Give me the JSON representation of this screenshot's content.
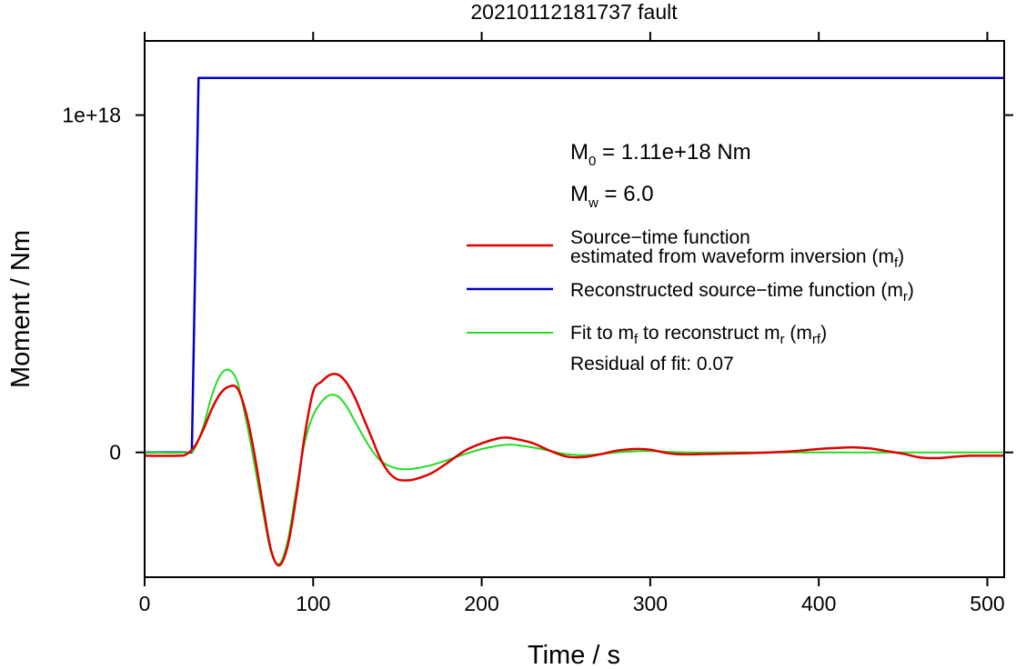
{
  "chart_data": {
    "type": "line",
    "title": "20210112181737 fault",
    "xlabel": "Time / s",
    "ylabel": "Moment / Nm",
    "xlim": [
      0,
      510
    ],
    "ylim": [
      -3.7e+17,
      1.22e+18
    ],
    "x_ticks": [
      0,
      100,
      200,
      300,
      400,
      500
    ],
    "x_tick_labels": [
      "0",
      "100",
      "200",
      "300",
      "400",
      "500"
    ],
    "y_ticks": [
      0,
      1e+18
    ],
    "y_tick_labels": [
      "0",
      "1e+18"
    ],
    "grid": false,
    "legend_position": "right",
    "colors": {
      "red": "#e00000",
      "blue": "#0000c8",
      "green": "#22dd22"
    },
    "annotations": {
      "m0_prefix": "M",
      "m0_sub": "0",
      "m0_suffix": " = 1.11e+18 Nm",
      "mw_prefix": "M",
      "mw_sub": "w",
      "mw_suffix": " = 6.0",
      "residual": "Residual of fit: 0.07"
    },
    "legend": [
      {
        "lines": [
          "Source−time function",
          "estimated from waveform inversion (m",
          "f",
          ")"
        ],
        "color": "red"
      },
      {
        "lines": [
          "Reconstructed source−time function (m",
          "r",
          ")"
        ],
        "color": "blue"
      },
      {
        "lines": [
          "Fit to m",
          "f",
          " to reconstruct m",
          "r",
          " (m",
          "rf",
          ")"
        ],
        "color": "green"
      }
    ],
    "series": [
      {
        "color": "red",
        "x": [
          0,
          20,
          25,
          30,
          35,
          40,
          45,
          50,
          55,
          60,
          65,
          70,
          75,
          80,
          85,
          90,
          95,
          100,
          105,
          110,
          115,
          120,
          125,
          130,
          135,
          140,
          145,
          150,
          155,
          160,
          170,
          180,
          190,
          200,
          210,
          215,
          220,
          230,
          240,
          250,
          260,
          270,
          280,
          290,
          300,
          310,
          320,
          340,
          360,
          380,
          400,
          410,
          420,
          430,
          440,
          450,
          460,
          470,
          480,
          490,
          510
        ],
        "y": [
          -1e+16,
          -1e+16,
          -5000000000000000.0,
          2e+16,
          7e+16,
          1.3e+17,
          1.75e+17,
          1.95e+17,
          1.9e+17,
          1.2e+17,
          0,
          -1.5e+17,
          -2.9e+17,
          -3.35e+17,
          -2.75e+17,
          -1.3e+17,
          5e+16,
          1.8e+17,
          2.1e+17,
          2.3e+17,
          2.3e+17,
          2.05e+17,
          1.6e+17,
          1e+17,
          4e+16,
          -2e+16,
          -6e+16,
          -8e+16,
          -8.3e+16,
          -8e+16,
          -6.2e+16,
          -3e+16,
          5000000000000000.0,
          2.7e+16,
          4.2e+16,
          4.4e+16,
          4e+16,
          2.8e+16,
          6000000000000000.0,
          -1.2e+16,
          -1.4e+16,
          -6000000000000000.0,
          5000000000000000.0,
          1e+16,
          8000000000000000.0,
          -2000000000000000.0,
          -6000000000000000.0,
          -4000000000000000.0,
          -2000000000000000.0,
          2000000000000000.0,
          1e+16,
          1.3e+16,
          1.5e+16,
          1.2e+16,
          4000000000000000.0,
          -4000000000000000.0,
          -1.5e+16,
          -1.7e+16,
          -1.3e+16,
          -1e+16,
          -1e+16
        ]
      },
      {
        "color": "blue",
        "x": [
          0,
          28,
          32,
          510
        ],
        "y": [
          0,
          0,
          1.11e+18,
          1.11e+18
        ]
      },
      {
        "color": "green",
        "x": [
          0,
          25,
          30,
          35,
          40,
          45,
          50,
          55,
          60,
          65,
          70,
          75,
          80,
          85,
          90,
          95,
          100,
          105,
          110,
          115,
          120,
          125,
          130,
          135,
          140,
          145,
          150,
          155,
          160,
          170,
          180,
          190,
          200,
          210,
          215,
          220,
          230,
          240,
          250,
          260,
          270,
          280,
          290,
          300,
          320,
          350,
          400,
          450,
          510
        ],
        "y": [
          0,
          0,
          1.5e+16,
          8e+16,
          1.7e+17,
          2.3e+17,
          2.45e+17,
          2.1e+17,
          1e+17,
          -3e+16,
          -1.7e+17,
          -2.95e+17,
          -3.3e+17,
          -2.6e+17,
          -1.1e+17,
          3e+16,
          1.1e+17,
          1.5e+17,
          1.7e+17,
          1.65e+17,
          1.35e+17,
          9e+16,
          4.5e+16,
          5000000000000000.0,
          -2.5e+16,
          -4e+16,
          -4.8e+16,
          -5e+16,
          -4.8e+16,
          -3.8e+16,
          -2.2e+16,
          -5000000000000000.0,
          1e+16,
          2e+16,
          2.3e+16,
          2.2e+16,
          1.5e+16,
          5000000000000000.0,
          -5000000000000000.0,
          -8000000000000000.0,
          -5000000000000000.0,
          0,
          3000000000000000.0,
          4000000000000000.0,
          0,
          0,
          0,
          0,
          0
        ]
      }
    ]
  }
}
